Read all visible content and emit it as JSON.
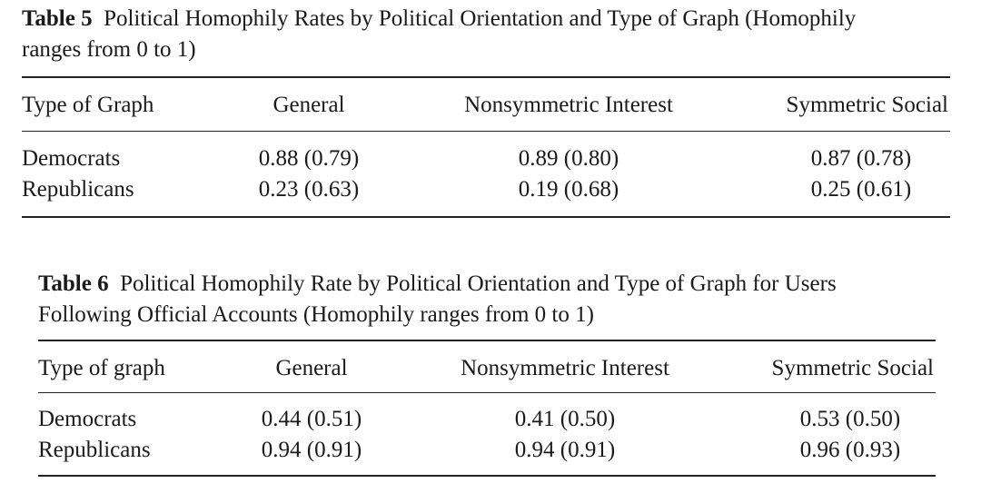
{
  "table5": {
    "label": "Table 5",
    "caption_line1": "Political Homophily Rates by Political Orientation and Type of Graph (Homophily",
    "caption_line2": "ranges from 0 to 1)",
    "headers": [
      "Type of Graph",
      "General",
      "Nonsymmetric Interest",
      "Symmetric Social"
    ],
    "rows": [
      [
        "Democrats",
        "0.88 (0.79)",
        "0.89 (0.80)",
        "0.87 (0.78)"
      ],
      [
        "Republicans",
        "0.23 (0.63)",
        "0.19 (0.68)",
        "0.25 (0.61)"
      ]
    ]
  },
  "table6": {
    "label": "Table 6",
    "caption_line1": "Political Homophily Rate by Political Orientation and Type of Graph for Users",
    "caption_line2": "Following Official Accounts (Homophily ranges from 0 to 1)",
    "headers": [
      "Type of graph",
      "General",
      "Nonsymmetric Interest",
      "Symmetric Social"
    ],
    "rows": [
      [
        "Democrats",
        "0.44 (0.51)",
        "0.41 (0.50)",
        "0.53 (0.50)"
      ],
      [
        "Republicans",
        "0.94 (0.91)",
        "0.94 (0.91)",
        "0.96 (0.93)"
      ]
    ]
  }
}
